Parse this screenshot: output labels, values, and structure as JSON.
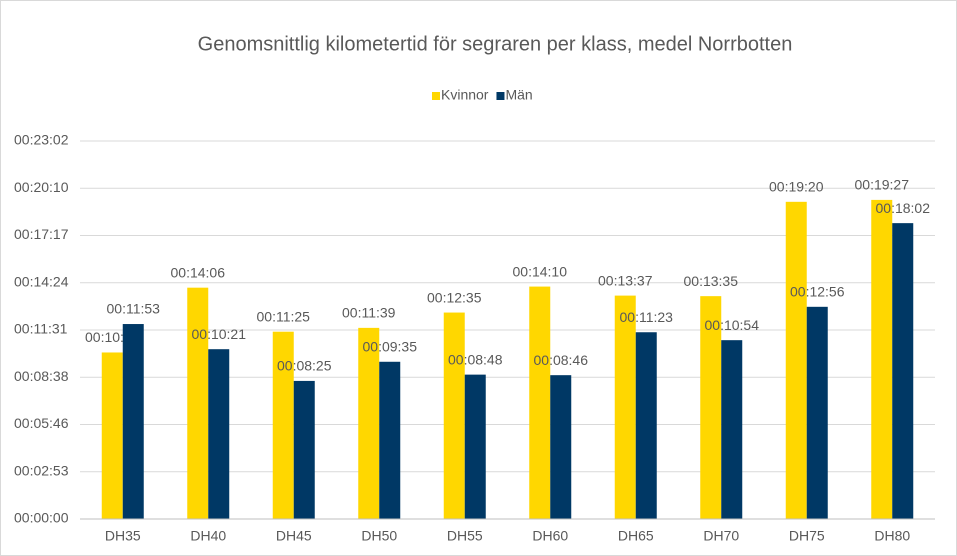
{
  "chart_data": {
    "type": "bar",
    "title": "Genomsnittlig kilometertid för segraren per klass, medel Norrbotten",
    "categories": [
      "DH35",
      "DH40",
      "DH45",
      "DH50",
      "DH55",
      "DH60",
      "DH65",
      "DH70",
      "DH75",
      "DH80"
    ],
    "series": [
      {
        "name": "Kvinnor",
        "color": "#ffd700",
        "values": [
          609,
          846,
          685,
          699,
          755,
          850,
          817,
          815,
          1160,
          1167
        ],
        "value_labels": [
          "00:10:09",
          "00:14:06",
          "00:11:25",
          "00:11:39",
          "00:12:35",
          "00:14:10",
          "00:13:37",
          "00:13:35",
          "00:19:20",
          "00:19:27"
        ]
      },
      {
        "name": "Män",
        "color": "#003865",
        "values": [
          713,
          621,
          505,
          575,
          528,
          526,
          683,
          654,
          776,
          1082
        ],
        "value_labels": [
          "00:11:53",
          "00:10:21",
          "00:08:25",
          "00:09:35",
          "00:08:48",
          "00:08:46",
          "00:11:23",
          "00:10:54",
          "00:12:56",
          "00:18:02"
        ]
      }
    ],
    "ylim": [
      0,
      1382.4
    ],
    "yticks": [
      {
        "value": 0,
        "label": "00:00:00"
      },
      {
        "value": 172.8,
        "label": "00:02:53"
      },
      {
        "value": 345.6,
        "label": "00:05:46"
      },
      {
        "value": 518.4,
        "label": "00:08:38"
      },
      {
        "value": 691.2,
        "label": "00:11:31"
      },
      {
        "value": 864,
        "label": "00:14:24"
      },
      {
        "value": 1036.8,
        "label": "00:17:17"
      },
      {
        "value": 1209.6,
        "label": "00:20:10"
      },
      {
        "value": 1382.4,
        "label": "00:23:02"
      }
    ],
    "grid": true,
    "legend": "top"
  }
}
